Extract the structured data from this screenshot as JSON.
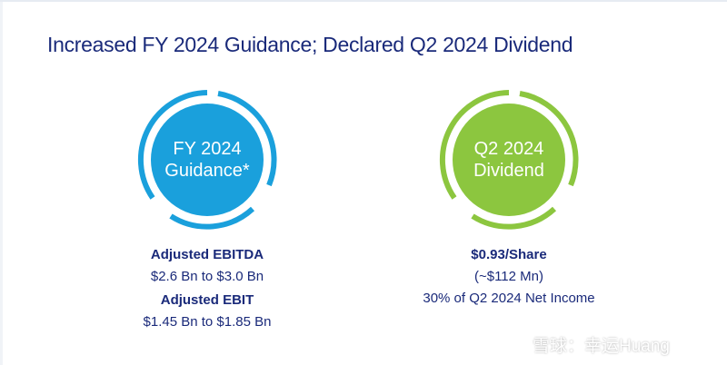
{
  "title": "Increased FY 2024 Guidance; Declared Q2 2024 Dividend",
  "colors": {
    "title_navy": "#1a2a7a",
    "blue_circle": "#1aa0dc",
    "green_circle": "#8cc63f"
  },
  "guidance": {
    "badge_line1": "FY 2024",
    "badge_line2": "Guidance*",
    "ebitda_label": "Adjusted EBITDA",
    "ebitda_range": "$2.6 Bn to $3.0 Bn",
    "ebit_label": "Adjusted EBIT",
    "ebit_range": "$1.45 Bn to $1.85 Bn"
  },
  "dividend": {
    "badge_line1": "Q2 2024",
    "badge_line2": "Dividend",
    "per_share": "$0.93/Share",
    "total": "(~$112 Mn)",
    "payout": "30% of Q2 2024 Net Income"
  },
  "watermark": {
    "icon": "snowball-logo-icon",
    "text": "雪球：幸运Huang"
  }
}
